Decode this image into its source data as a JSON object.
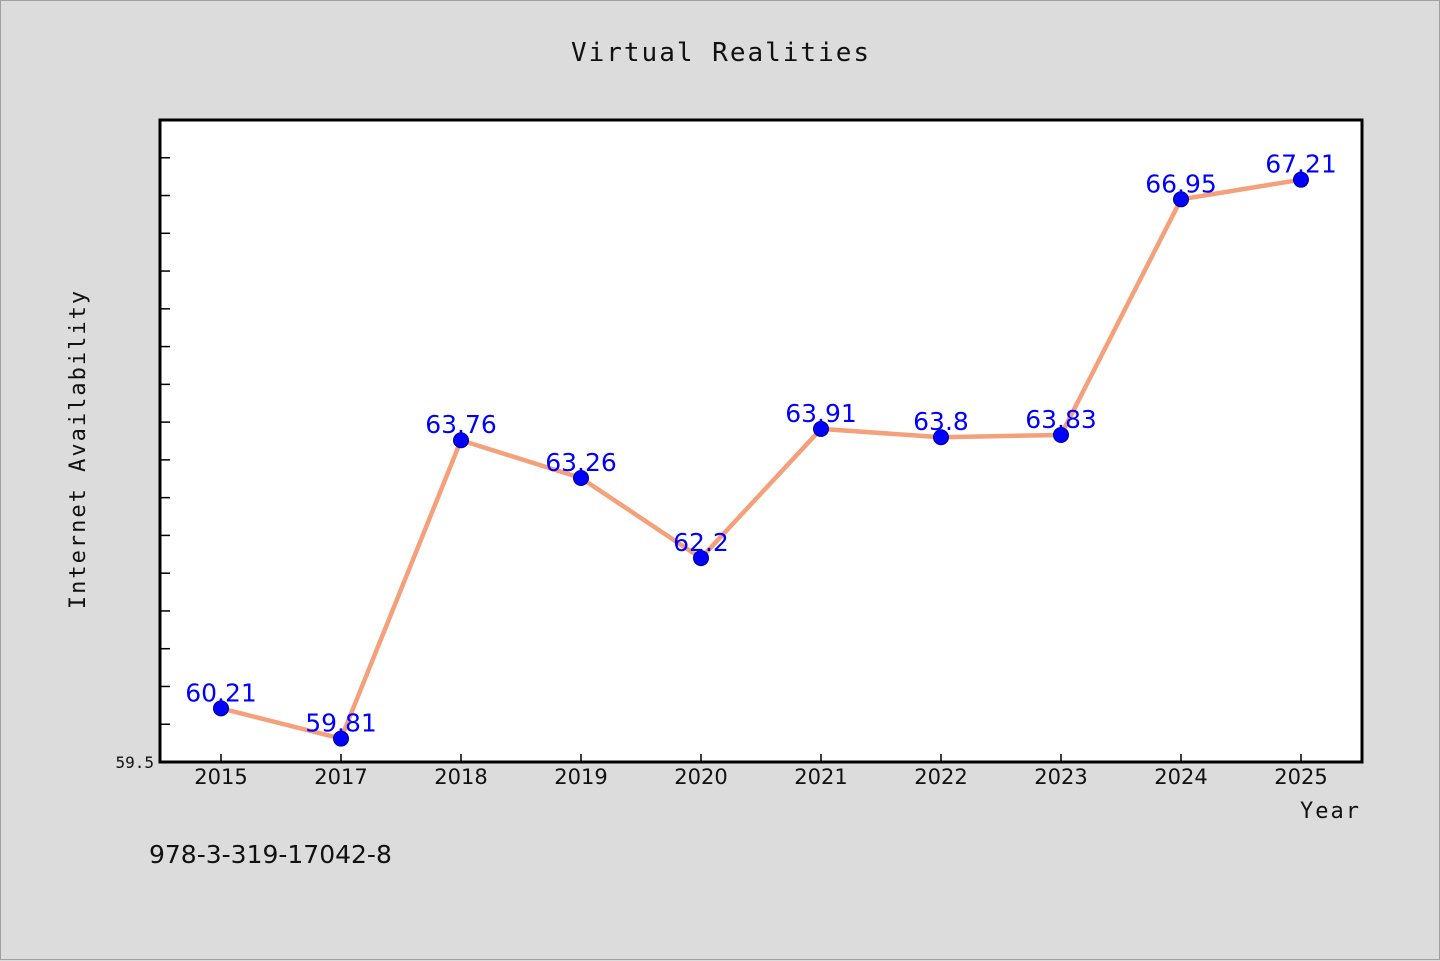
{
  "chart_data": {
    "type": "line",
    "title": "Virtual Realities",
    "xlabel": "Year",
    "ylabel": "Internet Availability",
    "categories": [
      "2015",
      "2017",
      "2018",
      "2019",
      "2020",
      "2021",
      "2022",
      "2023",
      "2024",
      "2025"
    ],
    "series": [
      {
        "values": [
          60.21,
          59.81,
          63.76,
          63.26,
          62.2,
          63.91,
          63.8,
          63.83,
          66.95,
          67.21
        ],
        "labels": [
          "60.21",
          "59.81",
          "63.76",
          "63.26",
          "62.2",
          "63.91",
          "63.8",
          "63.83",
          "66.95",
          "67.21"
        ],
        "line_color": "#f4a07a",
        "marker_color": "#0000ff"
      }
    ],
    "ylim": [
      59.5,
      68
    ],
    "y_tick_label": "59.5",
    "grid": false,
    "legend": "none"
  },
  "footer": {
    "isbn": "978-3-319-17042-8"
  },
  "colors": {
    "background": "#dcdcdc",
    "plot_area": "#ffffff",
    "axis": "#000000"
  }
}
